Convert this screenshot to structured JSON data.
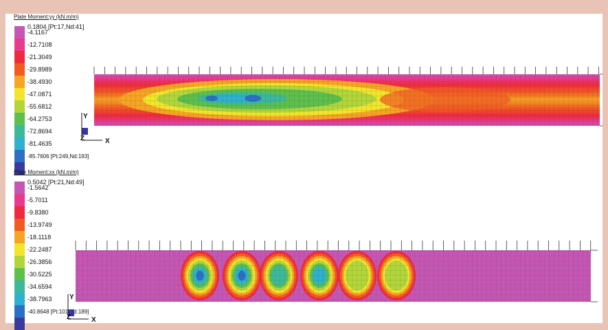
{
  "panels": [
    {
      "title": "Plate Moment:yy (kN.m/m)",
      "max_label": "0.1804 [Pt:17,Nd:41]",
      "levels": [
        "-4.1167",
        "-12.7108",
        "-21.3049",
        "-29.8989",
        "-38.4930",
        "-47.0871",
        "-55.6812",
        "-64.2753",
        "-72.8694",
        "-81.4635"
      ],
      "min_label": "-85.7606 [Pt:249,Nd:193]",
      "axes": {
        "y": "Y",
        "z": "Z",
        "x": "X"
      }
    },
    {
      "title": "Plate Moment:xx (kN.m/m)",
      "max_label": "0.5042 [Pt:21,Nd:49]",
      "levels": [
        "-1.5642",
        "-5.7011",
        "-9.8380",
        "-13.9749",
        "-18.1118",
        "-22.2487",
        "-26.3856",
        "-30.5225",
        "-34.6594",
        "-38.7963"
      ],
      "min_label": "-40.8648 [Pt:101,Nd:189]",
      "axes": {
        "y": "Y",
        "z": "Z",
        "x": "X"
      }
    }
  ],
  "colors": {
    "ramp": [
      "#c656b4",
      "#e83a8e",
      "#ef2a3e",
      "#f25a22",
      "#f6a423",
      "#f2e52a",
      "#b2d63a",
      "#5dbf4c",
      "#3cb89a",
      "#2eb0cf",
      "#2d6fc4",
      "#3a3a9c"
    ],
    "frame": "#e9c4b4"
  }
}
